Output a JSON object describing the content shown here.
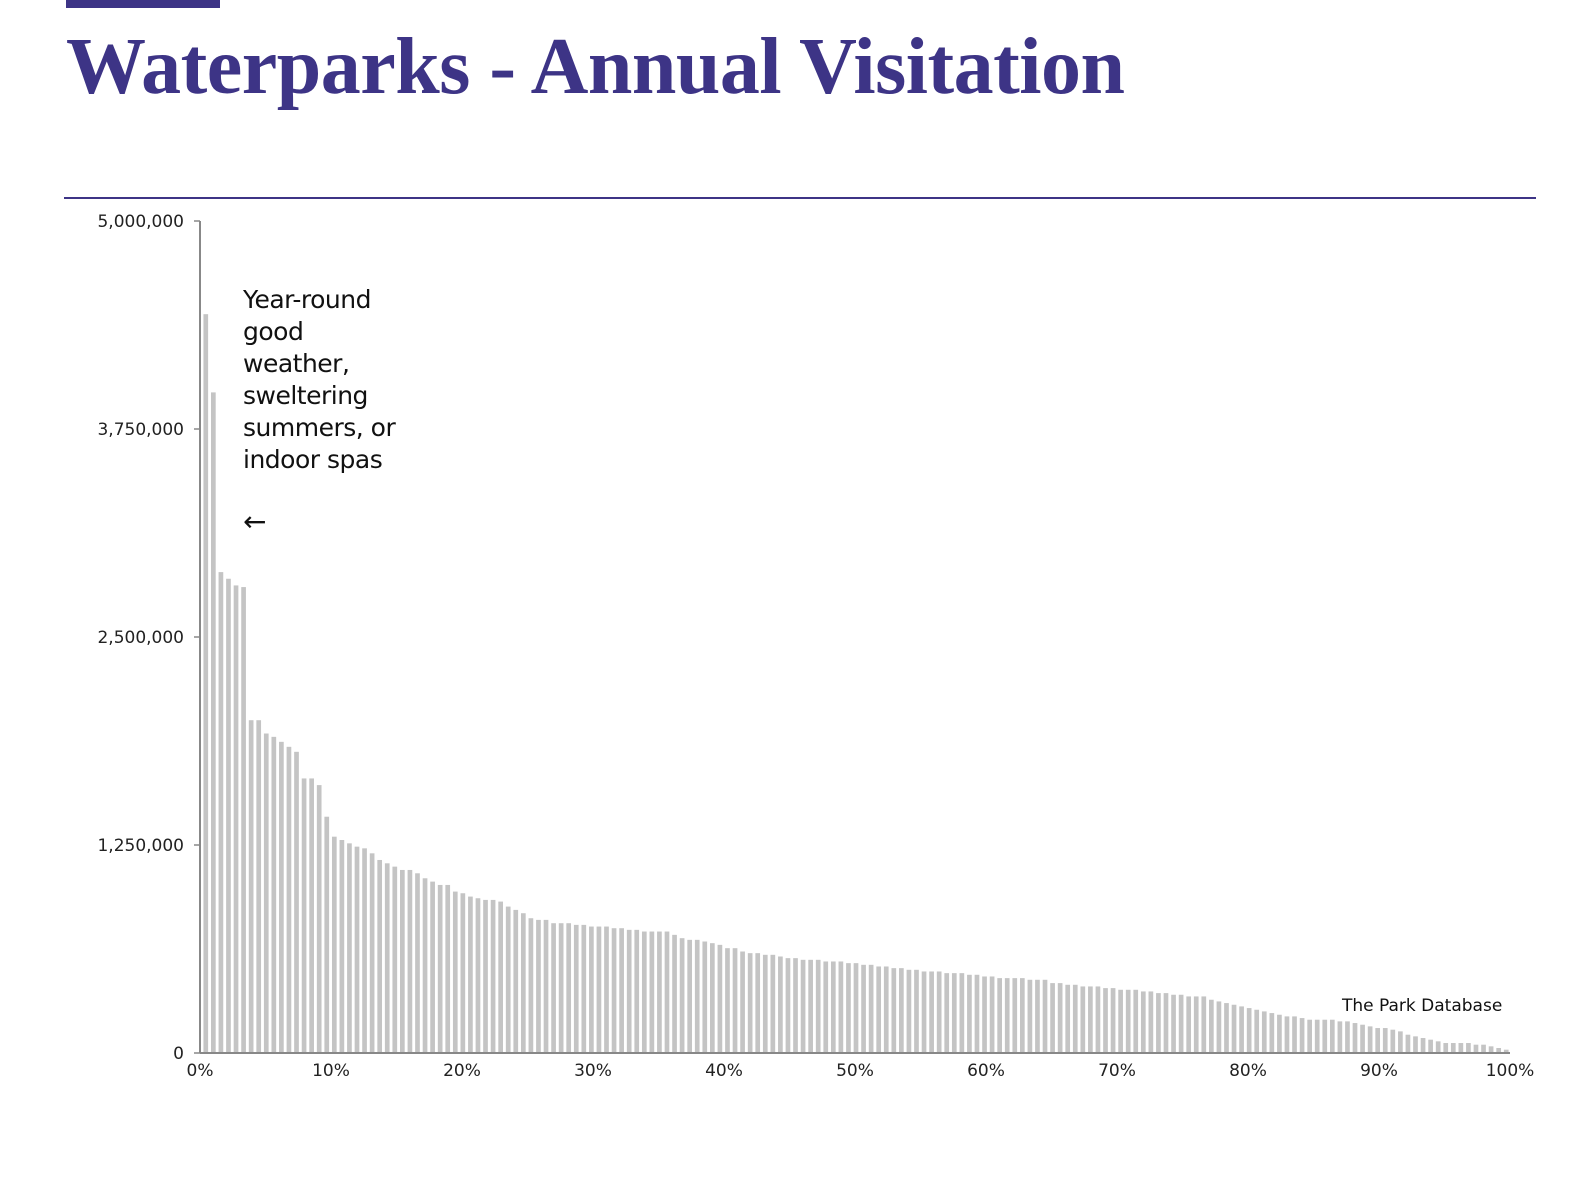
{
  "colors": {
    "accent": "#3d3486",
    "bar": "#c4c4c4",
    "axis": "#888888",
    "text": "#222222"
  },
  "header": {
    "title": "Waterparks - Annual Visitation"
  },
  "annotation": {
    "text": "Year-round good weather, sweltering summers, or indoor spas",
    "arrow": "←"
  },
  "source": {
    "label": "The Park Database"
  },
  "chart_data": {
    "type": "bar",
    "title": "Waterparks - Annual Visitation",
    "xlabel": "",
    "ylabel": "",
    "ylim": [
      0,
      5000000
    ],
    "xlim": [
      0,
      100
    ],
    "yticks": [
      0,
      1250000,
      2500000,
      3750000,
      5000000
    ],
    "ytick_labels": [
      "0",
      "1,250,000",
      "2,500,000",
      "3,750,000",
      "5,000,000"
    ],
    "xticks": [
      0,
      10,
      20,
      30,
      40,
      50,
      60,
      70,
      80,
      90,
      100
    ],
    "xtick_labels": [
      "0%",
      "10%",
      "20%",
      "30%",
      "40%",
      "50%",
      "60%",
      "70%",
      "80%",
      "90%",
      "100%"
    ],
    "grid": false,
    "values": [
      4440000,
      3970000,
      2890000,
      2850000,
      2810000,
      2800000,
      2000000,
      2000000,
      1920000,
      1900000,
      1870000,
      1840000,
      1810000,
      1650000,
      1650000,
      1610000,
      1420000,
      1300000,
      1280000,
      1260000,
      1240000,
      1230000,
      1200000,
      1160000,
      1140000,
      1120000,
      1100000,
      1100000,
      1080000,
      1050000,
      1030000,
      1010000,
      1010000,
      970000,
      960000,
      940000,
      930000,
      920000,
      920000,
      910000,
      880000,
      860000,
      840000,
      810000,
      800000,
      800000,
      780000,
      780000,
      780000,
      770000,
      770000,
      760000,
      760000,
      760000,
      750000,
      750000,
      740000,
      740000,
      730000,
      730000,
      730000,
      730000,
      710000,
      690000,
      680000,
      680000,
      670000,
      660000,
      650000,
      630000,
      630000,
      610000,
      600000,
      600000,
      590000,
      590000,
      580000,
      570000,
      570000,
      560000,
      560000,
      560000,
      550000,
      550000,
      550000,
      540000,
      540000,
      530000,
      530000,
      520000,
      520000,
      510000,
      510000,
      500000,
      500000,
      490000,
      490000,
      490000,
      480000,
      480000,
      480000,
      470000,
      470000,
      460000,
      460000,
      450000,
      450000,
      450000,
      450000,
      440000,
      440000,
      440000,
      420000,
      420000,
      410000,
      410000,
      400000,
      400000,
      400000,
      390000,
      390000,
      380000,
      380000,
      380000,
      370000,
      370000,
      360000,
      360000,
      350000,
      350000,
      340000,
      340000,
      340000,
      320000,
      310000,
      300000,
      290000,
      280000,
      270000,
      260000,
      250000,
      240000,
      230000,
      220000,
      220000,
      210000,
      200000,
      200000,
      200000,
      200000,
      190000,
      190000,
      180000,
      170000,
      160000,
      150000,
      150000,
      140000,
      130000,
      110000,
      100000,
      90000,
      80000,
      70000,
      60000,
      60000,
      60000,
      60000,
      50000,
      50000,
      40000,
      30000,
      20000
    ]
  }
}
